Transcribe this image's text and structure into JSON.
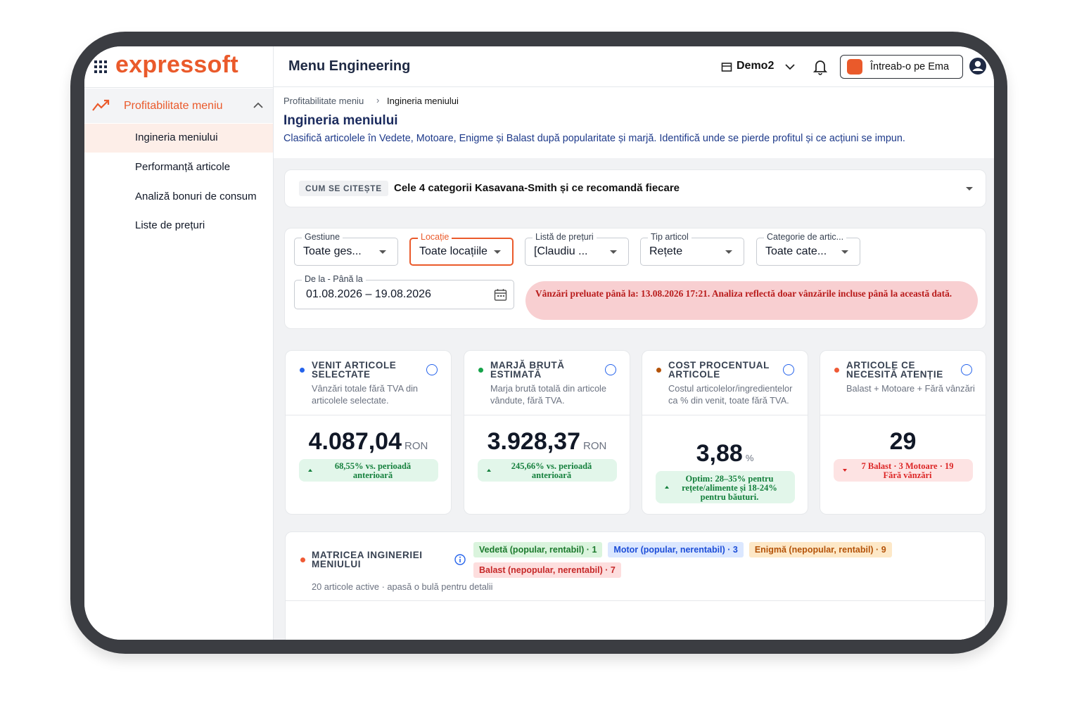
{
  "header": {
    "logo": "expressoft",
    "page_title": "Menu Engineering",
    "workspace": "Demo2",
    "assistant_button": "Întreab-o pe Ema"
  },
  "sidebar": {
    "section": "Profitabilitate meniu",
    "items": [
      "Ingineria meniului",
      "Performanță articole",
      "Analiză bonuri de consum",
      "Liste de prețuri"
    ]
  },
  "breadcrumb": [
    "Profitabilitate meniu",
    "Ingineria meniului"
  ],
  "page": {
    "title": "Ingineria meniului",
    "description": "Clasifică articolele în Vedete, Motoare, Enigme și Balast după popularitate și marjă. Identifică unde se pierde profitul și ce acțiuni se impun."
  },
  "guide": {
    "tag": "CUM SE CITEȘTE",
    "text": "Cele 4 categorii Kasavana-Smith și ce recomandă fiecare"
  },
  "filters": [
    {
      "label": "Gestiune",
      "value": "Toate ges..."
    },
    {
      "label": "Locație",
      "value": "Toate locațiile"
    },
    {
      "label": "Listă de prețuri",
      "value": "[Claudiu ..."
    },
    {
      "label": "Tip articol",
      "value": "Rețete"
    },
    {
      "label": "Categorie de artic...",
      "value": "Toate cate..."
    }
  ],
  "date_range": {
    "label": "De la - Până la",
    "value": "01.08.2026 – 19.08.2026"
  },
  "alert": "Vânzări preluate până la: 13.08.2026 17:21. Analiza reflectă doar vânzările incluse până la această dată.",
  "kpis": [
    {
      "title": "VENIT ARTICOLE SELECTATE",
      "subtitle": "Vânzări totale fără TVA din articolele selectate.",
      "value": "4.087,04",
      "unit": "RON",
      "note": "68,55% vs. perioadă anterioară"
    },
    {
      "title": "MARJĂ BRUTĂ ESTIMATĂ",
      "subtitle": "Marja brută totală din articole vândute, fără TVA.",
      "value": "3.928,37",
      "unit": "RON",
      "note": "245,66% vs. perioadă anterioară"
    },
    {
      "title": "COST PROCENTUAL ARTICOLE",
      "subtitle": "Costul articolelor/ingredientelor ca % din venit, toate fără TVA.",
      "value": "3,88",
      "unit": "%",
      "note": "Optim: 28–35% pentru rețete/alimente și 18-24% pentru băuturi."
    },
    {
      "title": "ARTICOLE CE NECESITĂ ATENȚIE",
      "subtitle": "Balast + Motoare + Fără vânzări",
      "value": "29",
      "note": "7 Balast · 3 Motoare · 19 Fără vânzări"
    }
  ],
  "matrix": {
    "title": "MATRICEA INGINERIEI MENIULUI",
    "subtitle": "20 articole active · apasă o bulă pentru detalii",
    "legend": [
      "Vedetă (popular, rentabil) · 1",
      "Motor (popular, nerentabil) · 3",
      "Enigmă (nepopular, rentabil) · 9",
      "Balast (nepopular, nerentabil) · 7"
    ]
  }
}
